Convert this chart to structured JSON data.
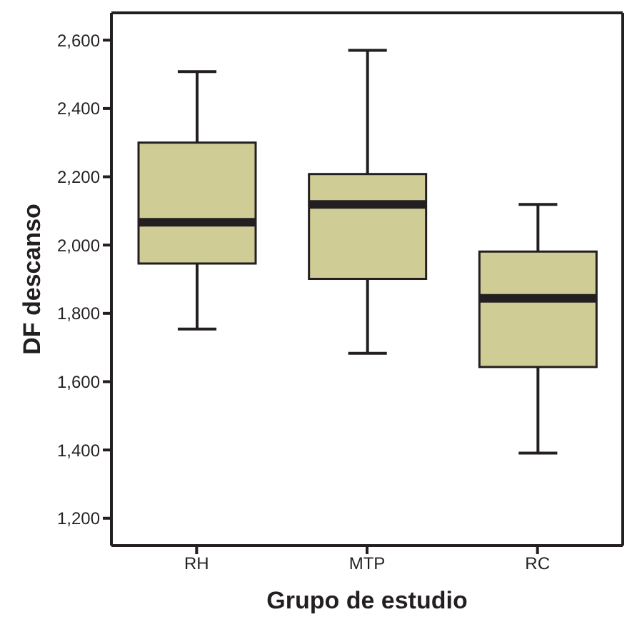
{
  "chart_data": {
    "type": "box",
    "xlabel": "Grupo de estudio",
    "ylabel": "DF descanso",
    "categories": [
      "RH",
      "MTP",
      "RC"
    ],
    "boxes": [
      {
        "low": 1754,
        "q1": 1946,
        "median": 2067,
        "q3": 2300,
        "high": 2508
      },
      {
        "low": 1683,
        "q1": 1901,
        "median": 2119,
        "q3": 2208,
        "high": 2570
      },
      {
        "low": 1391,
        "q1": 1643,
        "median": 1844,
        "q3": 1981,
        "high": 2119
      }
    ],
    "color": "#cfcc96",
    "ylim": [
      1120,
      2680
    ],
    "yticks": [
      {
        "value": 1200,
        "label": "1,200"
      },
      {
        "value": 1400,
        "label": "1,400"
      },
      {
        "value": 1600,
        "label": "1,600"
      },
      {
        "value": 1800,
        "label": "1,800"
      },
      {
        "value": 2000,
        "label": "2,000"
      },
      {
        "value": 2200,
        "label": "2,200"
      },
      {
        "value": 2400,
        "label": "2,400"
      },
      {
        "value": 2600,
        "label": "2,600"
      }
    ],
    "grid": false
  }
}
